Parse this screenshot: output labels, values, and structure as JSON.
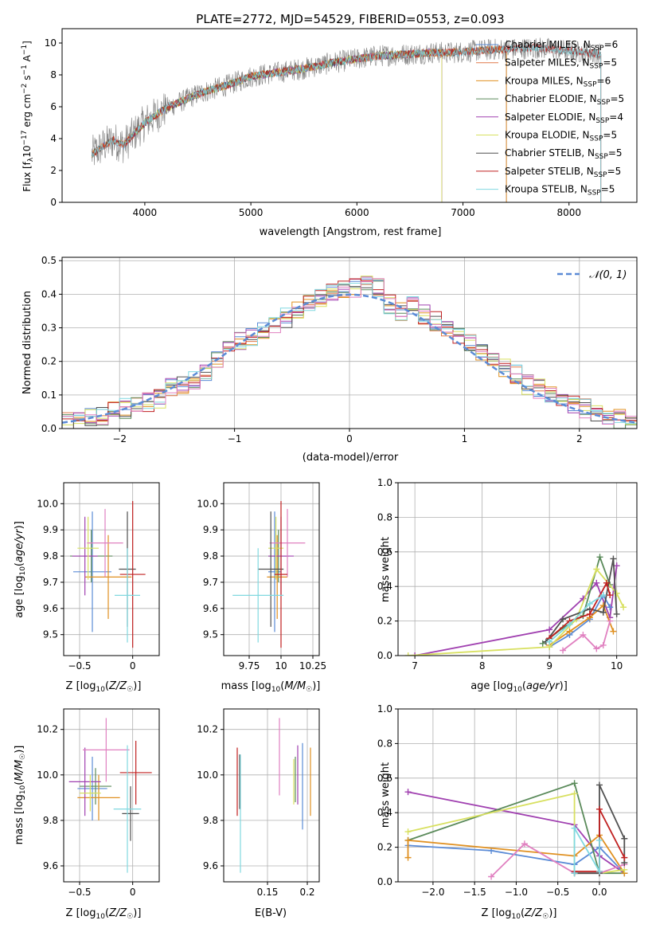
{
  "chart_data": [
    {
      "id": "spectrum",
      "type": "line",
      "title": "PLATE=2772, MJD=54529, FIBERID=0553, z=0.093",
      "xlabel": "wavelength [Angstrom, rest frame]",
      "ylabel": "Flux [f_λ10^-17 erg cm^-2 s^-1 A^-1]",
      "xlim": [
        3220,
        8640
      ],
      "ylim": [
        0,
        10.9
      ],
      "xticks": [
        4000,
        5000,
        6000,
        7000,
        8000
      ],
      "yticks": [
        0,
        2,
        4,
        6,
        8,
        10
      ],
      "grid": false,
      "legend_position": "right",
      "data_envelope": {
        "x": [
          3500,
          3600,
          3700,
          3800,
          3900,
          4000,
          4200,
          4500,
          4800,
          5000,
          5200,
          5500,
          5800,
          6000,
          6200,
          6500,
          6700,
          6900,
          7100,
          7300,
          7450,
          7700,
          8000,
          8300
        ],
        "y": [
          3.0,
          3.5,
          3.9,
          3.6,
          4.3,
          5.0,
          5.9,
          6.8,
          7.4,
          7.9,
          8.1,
          8.4,
          8.8,
          9.0,
          9.2,
          9.3,
          9.4,
          9.4,
          9.5,
          9.6,
          9.6,
          9.7,
          9.5,
          9.3
        ]
      },
      "series": [
        {
          "name": "Chabrier MILES, N_SSP=6",
          "color": "#5b8bd6",
          "xrange": [
            3500,
            7410
          ]
        },
        {
          "name": "Salpeter MILES, N_SSP=5",
          "color": "#e07a4a",
          "xrange": [
            3500,
            7410
          ]
        },
        {
          "name": "Kroupa MILES, N_SSP=6",
          "color": "#e09020",
          "xrange": [
            3500,
            7410
          ]
        },
        {
          "name": "Chabrier ELODIE, N_SSP=5",
          "color": "#5a8a5a",
          "xrange": [
            3800,
            6800
          ]
        },
        {
          "name": "Salpeter ELODIE, N_SSP=4",
          "color": "#a040b0",
          "xrange": [
            3800,
            6800
          ]
        },
        {
          "name": "Kroupa ELODIE, N_SSP=5",
          "color": "#d8e060",
          "xrange": [
            3800,
            6800
          ]
        },
        {
          "name": "Chabrier STELIB, N_SSP=5",
          "color": "#505050",
          "xrange": [
            3500,
            8300
          ]
        },
        {
          "name": "Salpeter STELIB, N_SSP=5",
          "color": "#c02020",
          "xrange": [
            3500,
            8300
          ]
        },
        {
          "name": "Kroupa STELIB, N_SSP=5",
          "color": "#80d8e0",
          "xrange": [
            3500,
            8300
          ]
        }
      ]
    },
    {
      "id": "residuals",
      "type": "line",
      "title": "",
      "xlabel": "(data-model)/error",
      "ylabel": "Normed distribution",
      "xlim": [
        -2.5,
        2.5
      ],
      "ylim": [
        0,
        0.51
      ],
      "xticks": [
        -2,
        -1,
        0,
        1,
        2
      ],
      "yticks": [
        0.0,
        0.1,
        0.2,
        0.3,
        0.4,
        0.5
      ],
      "grid": true,
      "legend": "𝒩(0, 1)",
      "legend_position": "top-right",
      "histogram": {
        "bin_edges": [
          -2.5,
          -2.4,
          -2.3,
          -2.2,
          -2.1,
          -2.0,
          -1.9,
          -1.8,
          -1.7,
          -1.6,
          -1.5,
          -1.4,
          -1.3,
          -1.2,
          -1.1,
          -1.0,
          -0.9,
          -0.8,
          -0.7,
          -0.6,
          -0.5,
          -0.4,
          -0.3,
          -0.2,
          -0.1,
          0.0,
          0.1,
          0.2,
          0.3,
          0.4,
          0.5,
          0.6,
          0.7,
          0.8,
          0.9,
          1.0,
          1.1,
          1.2,
          1.3,
          1.4,
          1.5,
          1.6,
          1.7,
          1.8,
          1.9,
          2.0,
          2.1,
          2.2,
          2.3,
          2.4,
          2.5
        ],
        "values": [
          0.02,
          0.02,
          0.03,
          0.04,
          0.05,
          0.06,
          0.07,
          0.08,
          0.09,
          0.12,
          0.13,
          0.14,
          0.17,
          0.2,
          0.24,
          0.26,
          0.27,
          0.29,
          0.31,
          0.33,
          0.35,
          0.38,
          0.39,
          0.4,
          0.41,
          0.42,
          0.44,
          0.42,
          0.37,
          0.35,
          0.37,
          0.34,
          0.32,
          0.3,
          0.28,
          0.25,
          0.23,
          0.21,
          0.18,
          0.16,
          0.13,
          0.12,
          0.1,
          0.08,
          0.07,
          0.06,
          0.05,
          0.04,
          0.03,
          0.02
        ],
        "series_colors": [
          "#5b8bd6",
          "#e07a4a",
          "#e09020",
          "#5a8a5a",
          "#a040b0",
          "#d8e060",
          "#505050",
          "#c02020",
          "#80d8e0",
          "#e080c0"
        ]
      },
      "normal_curve_color": "#5b8bd6"
    },
    {
      "id": "age-vs-Z",
      "type": "scatter",
      "xlabel": "Z [log10(Z/Z☉)]",
      "ylabel": "age  [log10(age/yr)]",
      "xlim": [
        -0.65,
        0.25
      ],
      "ylim": [
        9.42,
        10.08
      ],
      "xticks": [
        -0.5,
        0.0
      ],
      "yticks": [
        9.5,
        9.6,
        9.7,
        9.8,
        9.9,
        10.0
      ],
      "grid": true,
      "points": [
        {
          "x": -0.38,
          "y": 9.74,
          "xerr": 0.18,
          "yerr": 0.23,
          "color": "#5b8bd6"
        },
        {
          "x": -0.39,
          "y": 9.8,
          "xerr": 0.2,
          "yerr": 0.1,
          "color": "#5a8a5a"
        },
        {
          "x": -0.23,
          "y": 9.72,
          "xerr": 0.22,
          "yerr": 0.16,
          "color": "#e09020"
        },
        {
          "x": -0.45,
          "y": 9.8,
          "xerr": 0.12,
          "yerr": 0.15,
          "color": "#a040b0"
        },
        {
          "x": -0.42,
          "y": 9.83,
          "xerr": 0.1,
          "yerr": 0.12,
          "color": "#d8e060"
        },
        {
          "x": -0.26,
          "y": 9.85,
          "xerr": 0.17,
          "yerr": 0.13,
          "color": "#e080c0"
        },
        {
          "x": -0.05,
          "y": 9.75,
          "xerr": 0.08,
          "yerr": 0.22,
          "color": "#505050"
        },
        {
          "x": 0.0,
          "y": 9.73,
          "xerr": 0.12,
          "yerr": 0.28,
          "color": "#c02020"
        },
        {
          "x": -0.05,
          "y": 9.65,
          "xerr": 0.12,
          "yerr": 0.18,
          "color": "#80d8e0"
        }
      ]
    },
    {
      "id": "age-vs-mass",
      "type": "scatter",
      "xlabel": "mass [log10(M/M☉)]",
      "ylabel": "",
      "xlim": [
        9.55,
        10.3
      ],
      "ylim": [
        9.42,
        10.08
      ],
      "xticks": [
        9.75,
        10.0,
        10.25
      ],
      "yticks": [
        9.5,
        9.6,
        9.7,
        9.8,
        9.9,
        10.0
      ],
      "grid": true,
      "points": [
        {
          "x": 9.95,
          "y": 9.74,
          "xerr": 0.05,
          "yerr": 0.23,
          "color": "#5b8bd6"
        },
        {
          "x": 9.98,
          "y": 9.8,
          "xerr": 0.08,
          "yerr": 0.1,
          "color": "#5a8a5a"
        },
        {
          "x": 9.97,
          "y": 9.72,
          "xerr": 0.08,
          "yerr": 0.16,
          "color": "#e09020"
        },
        {
          "x": 10.0,
          "y": 9.8,
          "xerr": 0.1,
          "yerr": 0.15,
          "color": "#a040b0"
        },
        {
          "x": 9.96,
          "y": 9.83,
          "xerr": 0.06,
          "yerr": 0.12,
          "color": "#d8e060"
        },
        {
          "x": 10.05,
          "y": 9.85,
          "xerr": 0.14,
          "yerr": 0.13,
          "color": "#e080c0"
        },
        {
          "x": 9.92,
          "y": 9.75,
          "xerr": 0.1,
          "yerr": 0.22,
          "color": "#505050"
        },
        {
          "x": 10.0,
          "y": 9.73,
          "xerr": 0.05,
          "yerr": 0.28,
          "color": "#c02020"
        },
        {
          "x": 9.82,
          "y": 9.65,
          "xerr": 0.2,
          "yerr": 0.18,
          "color": "#80d8e0"
        }
      ]
    },
    {
      "id": "weight-vs-age",
      "type": "line",
      "xlabel": "age  [log10(age/yr)]",
      "ylabel": "mass weight",
      "xlim": [
        6.75,
        10.3
      ],
      "ylim": [
        0,
        1.0
      ],
      "xticks": [
        7,
        8,
        9,
        10
      ],
      "yticks": [
        0.0,
        0.2,
        0.4,
        0.6,
        0.8,
        1.0
      ],
      "grid": true,
      "series": [
        {
          "color": "#a040b0",
          "x": [
            7.0,
            9.0,
            9.5,
            9.7,
            9.9,
            10.0
          ],
          "y": [
            0.0,
            0.15,
            0.33,
            0.42,
            0.22,
            0.52
          ]
        },
        {
          "color": "#5b8bd6",
          "x": [
            9.0,
            9.3,
            9.6,
            9.8,
            9.9
          ],
          "y": [
            0.05,
            0.12,
            0.21,
            0.35,
            0.28
          ]
        },
        {
          "color": "#5a8a5a",
          "x": [
            8.9,
            9.2,
            9.5,
            9.75,
            9.9
          ],
          "y": [
            0.07,
            0.16,
            0.23,
            0.57,
            0.41
          ]
        },
        {
          "color": "#e09020",
          "x": [
            9.0,
            9.3,
            9.6,
            9.8,
            9.95
          ],
          "y": [
            0.06,
            0.14,
            0.22,
            0.29,
            0.14
          ]
        },
        {
          "color": "#d8e060",
          "x": [
            6.9,
            9.0,
            9.4,
            9.7,
            10.0,
            10.1
          ],
          "y": [
            0.0,
            0.05,
            0.21,
            0.5,
            0.36,
            0.28
          ]
        },
        {
          "color": "#e080c0",
          "x": [
            9.2,
            9.5,
            9.7,
            9.8,
            9.9
          ],
          "y": [
            0.03,
            0.12,
            0.04,
            0.06,
            0.2
          ]
        },
        {
          "color": "#505050",
          "x": [
            8.95,
            9.2,
            9.6,
            9.8,
            9.95,
            10.0
          ],
          "y": [
            0.08,
            0.21,
            0.27,
            0.25,
            0.56,
            0.24
          ]
        },
        {
          "color": "#c02020",
          "x": [
            9.0,
            9.3,
            9.6,
            9.85,
            9.9
          ],
          "y": [
            0.1,
            0.2,
            0.24,
            0.42,
            0.35
          ]
        },
        {
          "color": "#80d8e0",
          "x": [
            9.0,
            9.3,
            9.6,
            9.8
          ],
          "y": [
            0.08,
            0.18,
            0.3,
            0.35
          ]
        }
      ]
    },
    {
      "id": "mass-vs-Z",
      "type": "scatter",
      "xlabel": "Z [log10(Z/Z☉)]",
      "ylabel": "mass [log10(M/M☉)]",
      "xlim": [
        -0.65,
        0.25
      ],
      "ylim": [
        9.53,
        10.29
      ],
      "xticks": [
        -0.5,
        0.0
      ],
      "yticks": [
        9.6,
        9.8,
        10.0,
        10.2
      ],
      "grid": true,
      "points": [
        {
          "x": -0.38,
          "y": 9.94,
          "xerr": 0.14,
          "yerr": 0.14,
          "color": "#5b8bd6"
        },
        {
          "x": -0.35,
          "y": 9.95,
          "xerr": 0.15,
          "yerr": 0.08,
          "color": "#5a8a5a"
        },
        {
          "x": -0.32,
          "y": 9.9,
          "xerr": 0.2,
          "yerr": 0.1,
          "color": "#e09020"
        },
        {
          "x": -0.45,
          "y": 9.97,
          "xerr": 0.15,
          "yerr": 0.15,
          "color": "#a040b0"
        },
        {
          "x": -0.4,
          "y": 9.92,
          "xerr": 0.1,
          "yerr": 0.08,
          "color": "#d8e060"
        },
        {
          "x": -0.25,
          "y": 10.11,
          "xerr": 0.22,
          "yerr": 0.14,
          "color": "#e080c0"
        },
        {
          "x": -0.02,
          "y": 9.83,
          "xerr": 0.08,
          "yerr": 0.12,
          "color": "#505050"
        },
        {
          "x": 0.03,
          "y": 10.01,
          "xerr": 0.15,
          "yerr": 0.14,
          "color": "#c02020"
        },
        {
          "x": -0.05,
          "y": 9.85,
          "xerr": 0.13,
          "yerr": 0.28,
          "color": "#80d8e0"
        }
      ]
    },
    {
      "id": "mass-vs-EBV",
      "type": "scatter",
      "xlabel": "E(B-V)",
      "ylabel": "",
      "xlim": [
        0.095,
        0.215
      ],
      "ylim": [
        9.53,
        10.29
      ],
      "xticks": [
        0.15,
        0.2
      ],
      "yticks": [
        9.6,
        9.8,
        10.0,
        10.2
      ],
      "grid": true,
      "points": [
        {
          "x": 0.112,
          "y": 9.97,
          "yerr": 0.15,
          "color": "#c02020"
        },
        {
          "x": 0.115,
          "y": 9.97,
          "yerr": 0.12,
          "color": "#505050"
        },
        {
          "x": 0.116,
          "y": 9.83,
          "yerr": 0.26,
          "color": "#80d8e0"
        },
        {
          "x": 0.165,
          "y": 10.08,
          "yerr": 0.17,
          "color": "#e080c0"
        },
        {
          "x": 0.183,
          "y": 9.97,
          "yerr": 0.1,
          "color": "#d8e060"
        },
        {
          "x": 0.185,
          "y": 9.98,
          "yerr": 0.1,
          "color": "#5a8a5a"
        },
        {
          "x": 0.188,
          "y": 10.0,
          "yerr": 0.13,
          "color": "#a040b0"
        },
        {
          "x": 0.194,
          "y": 9.95,
          "yerr": 0.19,
          "color": "#5b8bd6"
        },
        {
          "x": 0.204,
          "y": 9.97,
          "yerr": 0.15,
          "color": "#e09020"
        }
      ]
    },
    {
      "id": "weight-vs-Z",
      "type": "line",
      "xlabel": "Z [log10(Z/Z☉)]",
      "ylabel": "mass weight",
      "xlim": [
        -2.42,
        0.45
      ],
      "ylim": [
        0,
        1.0
      ],
      "xticks": [
        -2.0,
        -1.5,
        -1.0,
        -0.5,
        0.0
      ],
      "yticks": [
        0.0,
        0.2,
        0.4,
        0.6,
        0.8,
        1.0
      ],
      "grid": true,
      "series": [
        {
          "color": "#a040b0",
          "x": [
            -2.3,
            -0.3,
            0.0,
            0.3
          ],
          "y": [
            0.52,
            0.33,
            0.15,
            0.05
          ]
        },
        {
          "color": "#5b8bd6",
          "x": [
            -2.3,
            -1.3,
            -0.3,
            0.0,
            0.3
          ],
          "y": [
            0.21,
            0.18,
            0.1,
            0.2,
            0.05
          ]
        },
        {
          "color": "#5a8a5a",
          "x": [
            -2.3,
            -0.3,
            0.0,
            0.3
          ],
          "y": [
            0.24,
            0.57,
            0.05,
            0.05
          ]
        },
        {
          "color": "#e09020",
          "x": [
            -2.3,
            -2.3,
            -0.3,
            0.0,
            0.3
          ],
          "y": [
            0.14,
            0.24,
            0.15,
            0.27,
            0.05
          ]
        },
        {
          "color": "#d8e060",
          "x": [
            -2.3,
            -0.3,
            -0.3,
            0.0,
            0.3
          ],
          "y": [
            0.29,
            0.51,
            0.05,
            0.05,
            0.07
          ]
        },
        {
          "color": "#e080c0",
          "x": [
            -1.3,
            -0.9,
            -0.3,
            0.0,
            0.3
          ],
          "y": [
            0.03,
            0.22,
            0.05,
            0.05,
            0.1
          ]
        },
        {
          "color": "#505050",
          "x": [
            -0.3,
            0.0,
            0.0,
            0.3,
            0.3
          ],
          "y": [
            0.05,
            0.05,
            0.56,
            0.25,
            0.11
          ]
        },
        {
          "color": "#c02020",
          "x": [
            -0.3,
            0.0,
            0.0,
            0.3
          ],
          "y": [
            0.06,
            0.06,
            0.42,
            0.14
          ]
        },
        {
          "color": "#80d8e0",
          "x": [
            -0.3,
            -0.3,
            0.0,
            0.0
          ],
          "y": [
            0.05,
            0.31,
            0.06,
            0.24
          ]
        }
      ]
    }
  ]
}
